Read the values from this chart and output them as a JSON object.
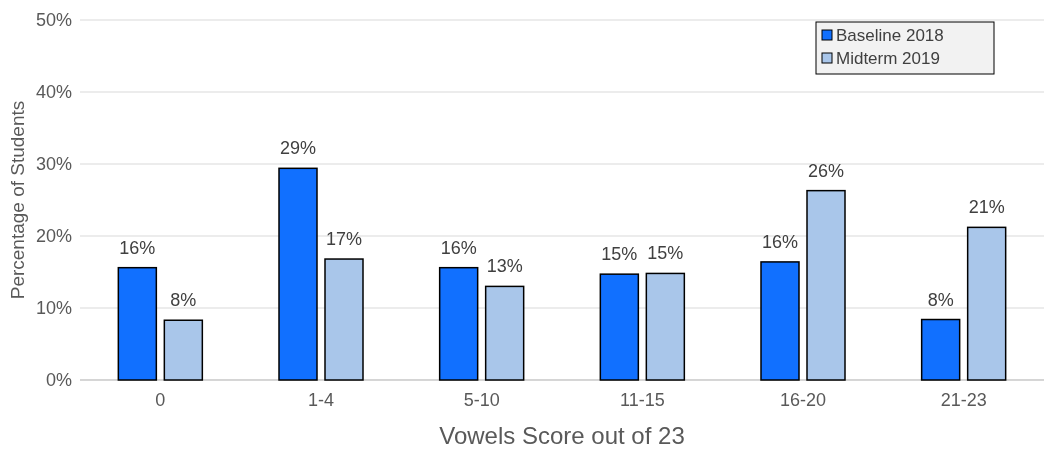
{
  "chart_data": {
    "type": "bar",
    "xlabel": "Vowels Score out of 23",
    "ylabel": "Percentage of Students",
    "categories": [
      "0",
      "1-4",
      "5-10",
      "11-15",
      "16-20",
      "21-23"
    ],
    "series": [
      {
        "name": "Baseline 2018",
        "color": "#1170ff",
        "values": [
          15.6,
          29.4,
          15.6,
          14.7,
          16.4,
          8.4
        ],
        "value_labels": [
          "16%",
          "29%",
          "16%",
          "15%",
          "16%",
          "8%"
        ]
      },
      {
        "name": "Midterm 2019",
        "color": "#a9c6ea",
        "values": [
          8.3,
          16.8,
          13.0,
          14.8,
          26.3,
          21.2
        ],
        "value_labels": [
          "8%",
          "17%",
          "13%",
          "15%",
          "26%",
          "21%"
        ]
      }
    ],
    "ylim": [
      0,
      50
    ],
    "yticks": [
      {
        "value": 0,
        "label": "0%"
      },
      {
        "value": 10,
        "label": "10%"
      },
      {
        "value": 20,
        "label": "20%"
      },
      {
        "value": 30,
        "label": "30%"
      },
      {
        "value": 40,
        "label": "40%"
      },
      {
        "value": 50,
        "label": "50%"
      }
    ],
    "grid": "y",
    "legend": "top right"
  }
}
